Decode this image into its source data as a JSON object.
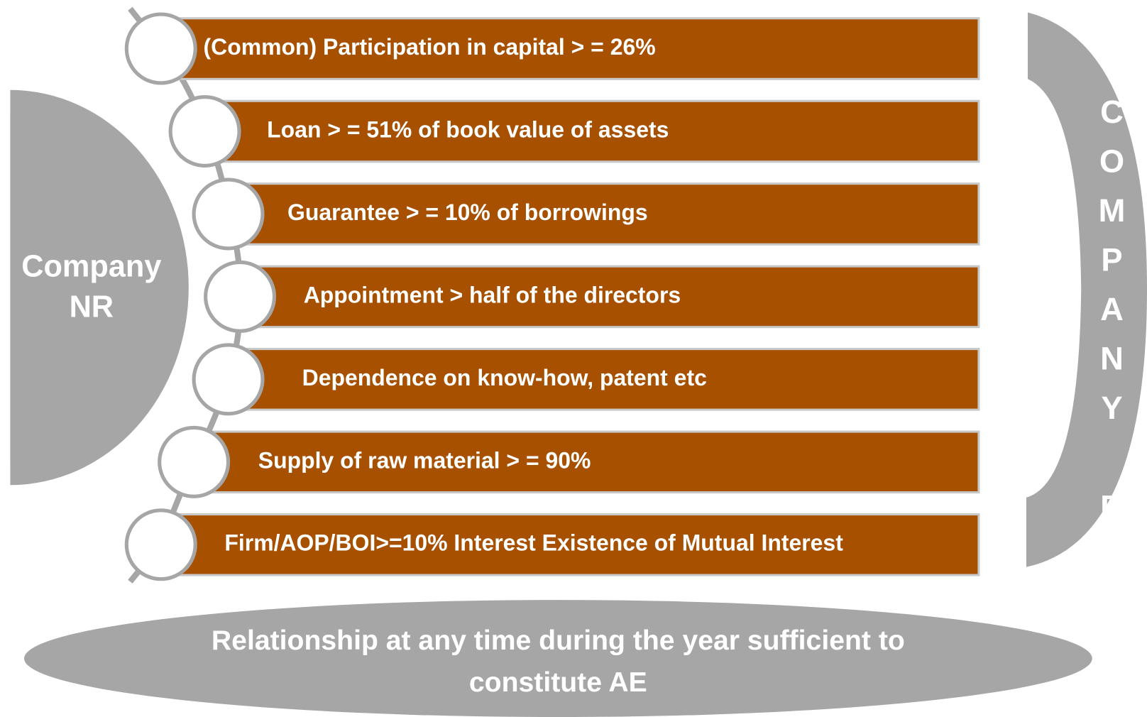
{
  "left_entity": {
    "lines": [
      "Company",
      "NR"
    ]
  },
  "right_entity": {
    "label": "COMPANY B"
  },
  "criteria": [
    "(Common) Participation in capital > = 26%",
    "Loan > = 51% of book value of assets",
    "Guarantee > = 10% of borrowings",
    "Appointment > half of the directors",
    "Dependence on know-how, patent etc",
    "Supply of raw material > = 90%",
    "Firm/AOP/BOI>=10% Interest Existence of Mutual Interest"
  ],
  "footer": {
    "lines": [
      "Relationship at any time during the year sufficient to",
      "constitute AE"
    ]
  }
}
